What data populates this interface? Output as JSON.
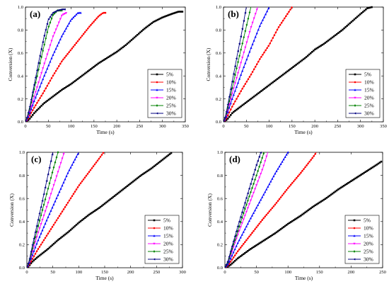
{
  "chart_data": [
    {
      "type": "line",
      "panel_label": "(a)",
      "xlabel": "Time (s)",
      "ylabel": "Conversion (X)",
      "xlim": [
        0,
        350
      ],
      "ylim": [
        0,
        1.0
      ],
      "xticks": [
        0,
        50,
        100,
        150,
        200,
        250,
        300,
        350
      ],
      "yticks": [
        0.0,
        0.2,
        0.4,
        0.6,
        0.8,
        1.0
      ],
      "legend_position": "bottom-right",
      "series": [
        {
          "name": "5%",
          "color": "#000000",
          "x": [
            0,
            5,
            10,
            20,
            40,
            60,
            80,
            100,
            120,
            140,
            160,
            180,
            200,
            220,
            240,
            260,
            280,
            300,
            320,
            335,
            345
          ],
          "y": [
            0,
            0.01,
            0.03,
            0.08,
            0.16,
            0.22,
            0.28,
            0.33,
            0.39,
            0.45,
            0.51,
            0.56,
            0.61,
            0.67,
            0.74,
            0.81,
            0.87,
            0.91,
            0.94,
            0.96,
            0.96
          ]
        },
        {
          "name": "10%",
          "color": "#ff0000",
          "x": [
            0,
            5,
            10,
            20,
            40,
            60,
            80,
            100,
            120,
            140,
            160,
            170,
            175
          ],
          "y": [
            0,
            0.02,
            0.06,
            0.13,
            0.26,
            0.4,
            0.53,
            0.63,
            0.73,
            0.83,
            0.92,
            0.95,
            0.95
          ]
        },
        {
          "name": "15%",
          "color": "#0000ff",
          "x": [
            0,
            5,
            10,
            20,
            40,
            60,
            80,
            100,
            115,
            122
          ],
          "y": [
            0,
            0.03,
            0.08,
            0.19,
            0.39,
            0.58,
            0.75,
            0.89,
            0.95,
            0.95
          ]
        },
        {
          "name": "20%",
          "color": "#ff00ff",
          "x": [
            0,
            5,
            10,
            20,
            40,
            60,
            80,
            90
          ],
          "y": [
            0,
            0.04,
            0.1,
            0.23,
            0.49,
            0.74,
            0.93,
            0.95
          ]
        },
        {
          "name": "25%",
          "color": "#008000",
          "x": [
            0,
            5,
            10,
            20,
            30,
            40,
            50,
            60,
            70,
            80
          ],
          "y": [
            0,
            0.05,
            0.12,
            0.3,
            0.48,
            0.65,
            0.82,
            0.93,
            0.97,
            0.97
          ]
        },
        {
          "name": "30%",
          "color": "#000080",
          "x": [
            0,
            5,
            10,
            20,
            30,
            40,
            50,
            60,
            70,
            80,
            88
          ],
          "y": [
            0,
            0.06,
            0.14,
            0.34,
            0.54,
            0.73,
            0.89,
            0.95,
            0.97,
            0.98,
            0.98
          ]
        }
      ]
    },
    {
      "type": "line",
      "panel_label": "(b)",
      "xlabel": "Time (s)",
      "ylabel": "Conversion (X)",
      "xlim": [
        0,
        350
      ],
      "ylim": [
        0,
        1.0
      ],
      "xticks": [
        0,
        50,
        100,
        150,
        200,
        250,
        300,
        350
      ],
      "yticks": [
        0.0,
        0.2,
        0.4,
        0.6,
        0.8,
        1.0
      ],
      "legend_position": "bottom-right",
      "series": [
        {
          "name": "5%",
          "color": "#000000",
          "x": [
            0,
            5,
            10,
            20,
            40,
            60,
            80,
            100,
            120,
            140,
            160,
            180,
            200,
            220,
            240,
            260,
            280,
            300,
            315,
            325
          ],
          "y": [
            0,
            0.01,
            0.03,
            0.08,
            0.14,
            0.2,
            0.26,
            0.32,
            0.38,
            0.44,
            0.5,
            0.56,
            0.63,
            0.68,
            0.74,
            0.8,
            0.87,
            0.94,
            0.99,
            1.0
          ]
        },
        {
          "name": "10%",
          "color": "#ff0000",
          "x": [
            0,
            5,
            10,
            20,
            40,
            60,
            80,
            100,
            120,
            140,
            150
          ],
          "y": [
            0,
            0.02,
            0.06,
            0.14,
            0.28,
            0.41,
            0.55,
            0.67,
            0.82,
            0.94,
            1.0
          ]
        },
        {
          "name": "15%",
          "color": "#0000ff",
          "x": [
            0,
            5,
            10,
            20,
            40,
            60,
            80,
            100
          ],
          "y": [
            0,
            0.03,
            0.09,
            0.21,
            0.43,
            0.64,
            0.84,
            1.0
          ]
        },
        {
          "name": "20%",
          "color": "#ff00ff",
          "x": [
            0,
            5,
            10,
            20,
            40,
            60,
            75
          ],
          "y": [
            0,
            0.04,
            0.11,
            0.26,
            0.54,
            0.82,
            1.0
          ]
        },
        {
          "name": "25%",
          "color": "#008000",
          "x": [
            0,
            5,
            10,
            20,
            30,
            40,
            50,
            60
          ],
          "y": [
            0,
            0.05,
            0.13,
            0.31,
            0.49,
            0.66,
            0.83,
            1.0
          ]
        },
        {
          "name": "30%",
          "color": "#000080",
          "x": [
            0,
            5,
            10,
            20,
            30,
            40,
            50
          ],
          "y": [
            0,
            0.06,
            0.16,
            0.37,
            0.58,
            0.78,
            1.0
          ]
        }
      ]
    },
    {
      "type": "line",
      "panel_label": "(c)",
      "xlabel": "Time (s)",
      "ylabel": "Conversion (X)",
      "xlim": [
        0,
        300
      ],
      "ylim": [
        0,
        1.0
      ],
      "xticks": [
        0,
        50,
        100,
        150,
        200,
        250,
        300
      ],
      "yticks": [
        0.0,
        0.2,
        0.4,
        0.6,
        0.8,
        1.0
      ],
      "legend_position": "bottom-right",
      "series": [
        {
          "name": "5%",
          "color": "#000000",
          "x": [
            0,
            5,
            10,
            20,
            40,
            60,
            80,
            100,
            120,
            140,
            160,
            180,
            200,
            220,
            240,
            260,
            280
          ],
          "y": [
            0,
            0.02,
            0.05,
            0.09,
            0.16,
            0.24,
            0.31,
            0.39,
            0.46,
            0.52,
            0.59,
            0.66,
            0.73,
            0.8,
            0.86,
            0.93,
            1.0
          ]
        },
        {
          "name": "10%",
          "color": "#ff0000",
          "x": [
            0,
            5,
            10,
            20,
            40,
            60,
            80,
            100,
            120,
            140,
            148
          ],
          "y": [
            0,
            0.03,
            0.07,
            0.15,
            0.29,
            0.43,
            0.57,
            0.71,
            0.83,
            0.95,
            1.0
          ]
        },
        {
          "name": "15%",
          "color": "#0000ff",
          "x": [
            0,
            5,
            10,
            20,
            40,
            60,
            80,
            100
          ],
          "y": [
            0,
            0.04,
            0.1,
            0.22,
            0.43,
            0.63,
            0.83,
            1.0
          ]
        },
        {
          "name": "20%",
          "color": "#ff00ff",
          "x": [
            0,
            5,
            10,
            20,
            40,
            60,
            72
          ],
          "y": [
            0,
            0.05,
            0.13,
            0.28,
            0.55,
            0.83,
            1.0
          ]
        },
        {
          "name": "25%",
          "color": "#008000",
          "x": [
            0,
            5,
            10,
            20,
            30,
            40,
            50,
            60
          ],
          "y": [
            0,
            0.06,
            0.15,
            0.33,
            0.5,
            0.67,
            0.84,
            1.0
          ]
        },
        {
          "name": "30%",
          "color": "#000080",
          "x": [
            0,
            5,
            10,
            20,
            30,
            40,
            50
          ],
          "y": [
            0,
            0.07,
            0.18,
            0.38,
            0.58,
            0.79,
            1.0
          ]
        }
      ]
    },
    {
      "type": "line",
      "panel_label": "(d)",
      "xlabel": "Time (s)",
      "ylabel": "Conversion (X)",
      "xlim": [
        0,
        250
      ],
      "ylim": [
        0,
        1.0
      ],
      "xticks": [
        0,
        50,
        100,
        150,
        200,
        250
      ],
      "yticks": [
        0.0,
        0.2,
        0.4,
        0.6,
        0.8,
        1.0
      ],
      "legend_position": "bottom-right",
      "series": [
        {
          "name": "5%",
          "color": "#000000",
          "x": [
            0,
            5,
            10,
            20,
            30,
            40,
            60,
            80,
            100,
            120,
            140,
            160,
            180,
            200,
            220,
            240,
            248
          ],
          "y": [
            0,
            0.01,
            0.03,
            0.08,
            0.12,
            0.16,
            0.23,
            0.3,
            0.38,
            0.45,
            0.53,
            0.6,
            0.68,
            0.75,
            0.82,
            0.89,
            0.92
          ]
        },
        {
          "name": "10%",
          "color": "#ff0000",
          "x": [
            0,
            5,
            10,
            20,
            40,
            60,
            80,
            100,
            120,
            140,
            145
          ],
          "y": [
            0,
            0.02,
            0.06,
            0.14,
            0.28,
            0.42,
            0.55,
            0.69,
            0.82,
            0.96,
            1.0
          ]
        },
        {
          "name": "15%",
          "color": "#0000ff",
          "x": [
            0,
            5,
            10,
            20,
            40,
            60,
            80,
            100
          ],
          "y": [
            0,
            0.03,
            0.09,
            0.21,
            0.42,
            0.62,
            0.82,
            1.0
          ]
        },
        {
          "name": "20%",
          "color": "#ff00ff",
          "x": [
            0,
            5,
            10,
            20,
            40,
            60,
            68
          ],
          "y": [
            0,
            0.05,
            0.12,
            0.28,
            0.57,
            0.86,
            1.0
          ]
        },
        {
          "name": "25%",
          "color": "#008000",
          "x": [
            0,
            5,
            10,
            20,
            30,
            40,
            50,
            62
          ],
          "y": [
            0,
            0.05,
            0.14,
            0.31,
            0.48,
            0.64,
            0.8,
            1.0
          ]
        },
        {
          "name": "30%",
          "color": "#000080",
          "x": [
            0,
            5,
            10,
            20,
            30,
            40,
            50,
            57
          ],
          "y": [
            0,
            0.06,
            0.16,
            0.35,
            0.53,
            0.71,
            0.89,
            1.0
          ]
        }
      ]
    }
  ]
}
